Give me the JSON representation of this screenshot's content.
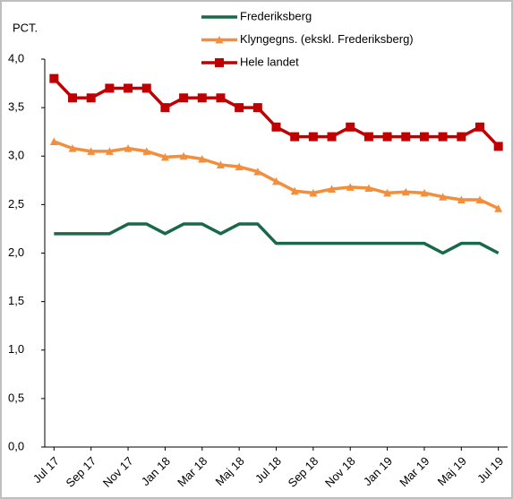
{
  "chart_data": {
    "type": "line",
    "y_label": "PCT.",
    "categories": [
      "Jul 17",
      null,
      "Sep 17",
      null,
      "Nov 17",
      null,
      "Jan 18",
      null,
      "Mar 18",
      null,
      "Maj 18",
      null,
      "Jul 18",
      null,
      "Sep 18",
      null,
      "Nov 18",
      null,
      "Jan 19",
      null,
      "Mar 19",
      null,
      "Maj 19",
      null,
      "Jul 19"
    ],
    "series": [
      {
        "name": "Frederiksberg",
        "color": "#17694a",
        "marker": "none",
        "values": [
          2.2,
          2.2,
          2.2,
          2.2,
          2.3,
          2.3,
          2.2,
          2.3,
          2.3,
          2.2,
          2.3,
          2.3,
          2.1,
          2.1,
          2.1,
          2.1,
          2.1,
          2.1,
          2.1,
          2.1,
          2.1,
          2.0,
          2.1,
          2.1,
          2.0
        ]
      },
      {
        "name": "Klyngegns. (ekskl. Frederiksberg)",
        "color": "#f28e3c",
        "marker": "triangle",
        "values": [
          3.15,
          3.08,
          3.05,
          3.05,
          3.08,
          3.05,
          2.99,
          3.0,
          2.97,
          2.91,
          2.89,
          2.84,
          2.74,
          2.64,
          2.62,
          2.66,
          2.68,
          2.67,
          2.62,
          2.63,
          2.62,
          2.58,
          2.55,
          2.55,
          2.46
        ]
      },
      {
        "name": "Hele landet",
        "color": "#c00000",
        "marker": "square",
        "values": [
          3.8,
          3.6,
          3.6,
          3.7,
          3.7,
          3.7,
          3.5,
          3.6,
          3.6,
          3.6,
          3.5,
          3.5,
          3.3,
          3.2,
          3.2,
          3.2,
          3.3,
          3.2,
          3.2,
          3.2,
          3.2,
          3.2,
          3.2,
          3.3,
          3.1
        ]
      }
    ],
    "ylim": [
      0,
      4
    ],
    "yticks": [
      {
        "value": 0,
        "label": "0,0"
      },
      {
        "value": 0.5,
        "label": "0,5"
      },
      {
        "value": 1,
        "label": "1,0"
      },
      {
        "value": 1.5,
        "label": "1,5"
      },
      {
        "value": 2,
        "label": "2,0"
      },
      {
        "value": 2.5,
        "label": "2,5"
      },
      {
        "value": 3,
        "label": "3,0"
      },
      {
        "value": 3.5,
        "label": "3,5"
      },
      {
        "value": 4,
        "label": "4,0"
      }
    ],
    "grid": false
  }
}
